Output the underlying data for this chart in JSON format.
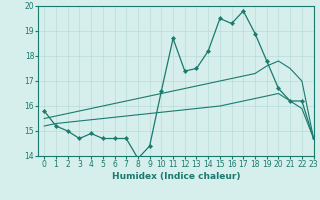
{
  "x": [
    0,
    1,
    2,
    3,
    4,
    5,
    6,
    7,
    8,
    9,
    10,
    11,
    12,
    13,
    14,
    15,
    16,
    17,
    18,
    19,
    20,
    21,
    22,
    23
  ],
  "line_main": [
    15.8,
    15.2,
    15.0,
    14.7,
    14.9,
    14.7,
    14.7,
    14.7,
    13.9,
    14.4,
    16.6,
    18.7,
    17.4,
    17.5,
    18.2,
    19.5,
    19.3,
    19.8,
    18.9,
    17.8,
    16.7,
    16.2,
    16.2,
    14.7
  ],
  "line_upper": [
    15.5,
    15.6,
    15.7,
    15.8,
    15.9,
    16.0,
    16.1,
    16.2,
    16.3,
    16.4,
    16.5,
    16.6,
    16.7,
    16.8,
    16.9,
    17.0,
    17.1,
    17.2,
    17.3,
    17.6,
    17.8,
    17.5,
    17.0,
    14.7
  ],
  "line_lower": [
    15.2,
    15.3,
    15.35,
    15.4,
    15.45,
    15.5,
    15.55,
    15.6,
    15.65,
    15.7,
    15.75,
    15.8,
    15.85,
    15.9,
    15.95,
    16.0,
    16.1,
    16.2,
    16.3,
    16.4,
    16.5,
    16.2,
    15.9,
    14.7
  ],
  "color_main": "#1a7a6e",
  "background": "#d6eeec",
  "grid_color": "#b8dcd8",
  "xlabel": "Humidex (Indice chaleur)",
  "ylim": [
    14,
    20
  ],
  "xlim": [
    -0.5,
    23
  ],
  "yticks": [
    14,
    15,
    16,
    17,
    18,
    19,
    20
  ],
  "xticks": [
    0,
    1,
    2,
    3,
    4,
    5,
    6,
    7,
    8,
    9,
    10,
    11,
    12,
    13,
    14,
    15,
    16,
    17,
    18,
    19,
    20,
    21,
    22,
    23
  ],
  "label_fontsize": 6.5,
  "tick_fontsize": 5.5
}
